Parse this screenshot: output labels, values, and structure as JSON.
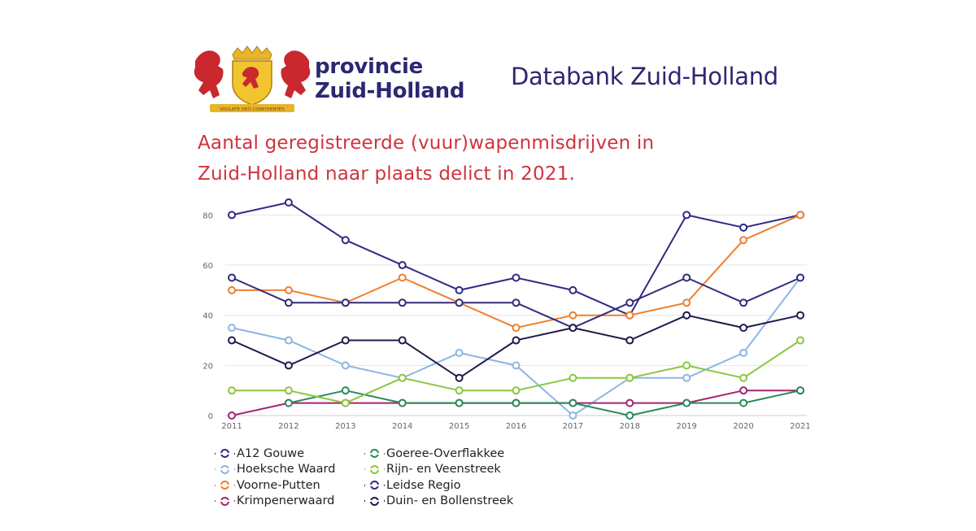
{
  "header": {
    "logo": {
      "line1": "provincie",
      "line2": "Zuid-Holland",
      "motto": "VIGILATE DEO CONFIDENTES"
    },
    "databank_title": "Databank Zuid-Holland"
  },
  "chart_data": {
    "type": "line",
    "title": "Aantal geregistreerde (vuur)wapenmisdrijven in Zuid-Holland naar plaats delict in 2021.",
    "title_lines": [
      "Aantal geregistreerde (vuur)wapenmisdrijven in",
      "Zuid-Holland naar plaats delict in 2021."
    ],
    "xlabel": "",
    "ylabel": "",
    "x": [
      "2011",
      "2012",
      "2013",
      "2014",
      "2015",
      "2016",
      "2017",
      "2018",
      "2019",
      "2020",
      "2021"
    ],
    "ylim": [
      0,
      85
    ],
    "yticks": [
      0,
      20,
      40,
      60,
      80
    ],
    "grid": true,
    "legend_position": "bottom-left",
    "series": [
      {
        "name": "A12 Gouwe",
        "color": "#2f2a86",
        "values": [
          80,
          85,
          70,
          60,
          50,
          55,
          50,
          40,
          80,
          75,
          80
        ]
      },
      {
        "name": "Hoeksche Waard",
        "color": "#8cb6e3",
        "values": [
          35,
          30,
          20,
          15,
          25,
          20,
          0,
          15,
          15,
          25,
          55
        ]
      },
      {
        "name": "Voorne-Putten",
        "color": "#f07f30",
        "values": [
          50,
          50,
          45,
          55,
          45,
          35,
          40,
          40,
          45,
          70,
          80
        ]
      },
      {
        "name": "Krimpenerwaard",
        "color": "#a3256f",
        "values": [
          0,
          5,
          5,
          5,
          5,
          5,
          5,
          5,
          5,
          10,
          10
        ]
      },
      {
        "name": "Goeree-Overflakkee",
        "color": "#2a8a5a",
        "values": [
          null,
          5,
          10,
          5,
          5,
          5,
          5,
          0,
          5,
          5,
          10
        ]
      },
      {
        "name": "Rijn- en Veenstreek",
        "color": "#8cc63f",
        "values": [
          10,
          10,
          5,
          15,
          10,
          10,
          15,
          15,
          20,
          15,
          30
        ]
      },
      {
        "name": "Leidse Regio",
        "color": "#332c7a",
        "values": [
          55,
          45,
          45,
          45,
          45,
          45,
          35,
          45,
          55,
          45,
          55
        ]
      },
      {
        "name": "Duin- en Bollenstreek",
        "color": "#1e1b4b",
        "values": [
          30,
          20,
          30,
          30,
          15,
          30,
          35,
          30,
          40,
          35,
          40
        ]
      }
    ]
  }
}
